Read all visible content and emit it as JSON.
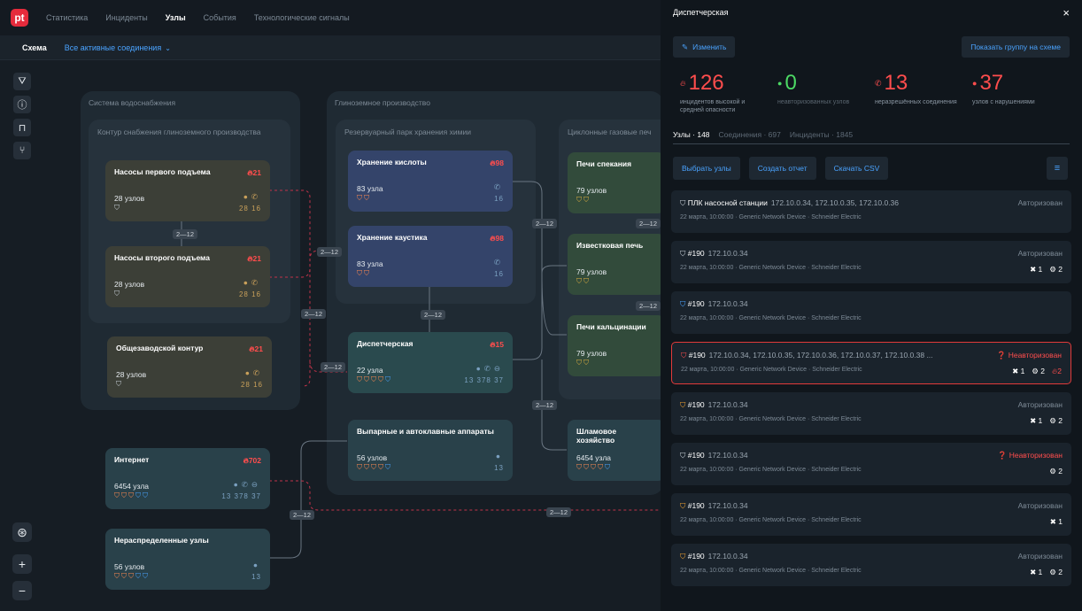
{
  "topnav": {
    "logo": "pt",
    "items": [
      {
        "label": "Статистика",
        "active": false
      },
      {
        "label": "Инциденты",
        "active": false
      },
      {
        "label": "Узлы",
        "active": true
      },
      {
        "label": "События",
        "active": false
      },
      {
        "label": "Технологические сигналы",
        "active": false
      }
    ]
  },
  "subbar": {
    "schema": "Схема",
    "filter": "Все активные соединения"
  },
  "groups": {
    "water": "Система водоснабжения",
    "water_sub": "Контур снабжения глиноземного производства",
    "alumina": "Глиноземное производство",
    "tank": "Резервуарный парк хранения химии",
    "cyclone": "Циклонные газовые печ"
  },
  "nodes": [
    {
      "id": "n1",
      "title": "Насосы первого подъема",
      "fire": "21",
      "count": "28 узлов",
      "rnums": "28  16"
    },
    {
      "id": "n2",
      "title": "Насосы второго подъема",
      "fire": "21",
      "count": "28 узлов",
      "rnums": "28  16"
    },
    {
      "id": "n3",
      "title": "Общезаводской контур",
      "fire": "21",
      "count": "28 узлов",
      "rnums": "28  16"
    },
    {
      "id": "n4",
      "title": "Хранение кислоты",
      "fire": "98",
      "count": "83 узла",
      "rnums": "16"
    },
    {
      "id": "n5",
      "title": "Хранение каустика",
      "fire": "98",
      "count": "83 узла",
      "rnums": "16"
    },
    {
      "id": "n6",
      "title": "Диспетчерская",
      "fire": "15",
      "count": "22 узла",
      "rnums": "13  378  37"
    },
    {
      "id": "n7",
      "title": "Выпарные и автоклавные аппараты",
      "fire": "",
      "count": "56 узлов",
      "rnums": "13"
    },
    {
      "id": "n8",
      "title": "Печи спекания",
      "fire": "",
      "count": "79 узлов",
      "rnums": ""
    },
    {
      "id": "n9",
      "title": "Известковая печь",
      "fire": "",
      "count": "79 узлов",
      "rnums": ""
    },
    {
      "id": "n10",
      "title": "Печи кальцинации",
      "fire": "",
      "count": "79 узлов",
      "rnums": ""
    },
    {
      "id": "n11",
      "title": "Шламовое хозяйство",
      "fire": "",
      "count": "6454 узла",
      "rnums": ""
    },
    {
      "id": "n12",
      "title": "Интернет",
      "fire": "702",
      "count": "6454 узла",
      "rnums": "13  378  37"
    },
    {
      "id": "n13",
      "title": "Нераспределенные узлы",
      "fire": "",
      "count": "56 узлов",
      "rnums": "13"
    }
  ],
  "edge_label": "2—12",
  "panel": {
    "title": "Диспетчерская",
    "close": "×",
    "edit": "Изменить",
    "show_group": "Показать группу на схеме",
    "stats": [
      {
        "value": "126",
        "label": "инцидентов высокой и средней опасности",
        "color": "#ff4d4d",
        "icon": "fire"
      },
      {
        "value": "0",
        "label": "неавторизованных узлов",
        "color": "#4cd964",
        "icon": "dot"
      },
      {
        "value": "13",
        "label": "неразрешённых соединения",
        "color": "#ff4d4d",
        "icon": "phone"
      },
      {
        "value": "37",
        "label": "узлов с нарушениями",
        "color": "#ff4d4d",
        "icon": "dot"
      }
    ],
    "tabs": [
      {
        "label": "Узлы · 148",
        "active": true
      },
      {
        "label": "Соединения · 697",
        "active": false
      },
      {
        "label": "Инциденты · 1845",
        "active": false
      }
    ],
    "actions": {
      "select": "Выбрать узлы",
      "report": "Создать отчет",
      "csv": "Скачать CSV"
    },
    "rows": [
      {
        "name": "ПЛК насосной станции",
        "ip": "172.10.0.34, 172.10.0.35, 172.10.0.36",
        "meta": "22 марта, 10:00:00  ·  Generic Network Device  ·  Schneider Electric",
        "status": "Авторизован",
        "bad": false,
        "c1": "",
        "c2": "",
        "c3": "",
        "icolor": "#c9d1d9"
      },
      {
        "name": "#190",
        "ip": "172.10.0.34",
        "meta": "22 марта, 10:00:00  ·  Generic Network Device  ·  Schneider Electric",
        "status": "Авторизован",
        "bad": false,
        "c1": "1",
        "c2": "2",
        "c3": "",
        "icolor": "#c9d1d9"
      },
      {
        "name": "#190",
        "ip": "172.10.0.34",
        "meta": "22 марта, 10:00:00  ·  Generic Network Device  ·  Schneider Electric",
        "status": "",
        "bad": false,
        "c1": "",
        "c2": "",
        "c3": "",
        "icolor": "#4aa3ff"
      },
      {
        "name": "#190",
        "ip": "172.10.0.34, 172.10.0.35, 172.10.0.36, 172.10.0.37, 172.10.0.38 ...",
        "meta": "22 марта, 10:00:00  ·  Generic Network Device  ·  Schneider Electric",
        "status": "Неавторизован",
        "bad": true,
        "c1": "1",
        "c2": "2",
        "c3": "2",
        "icolor": "#ff4d4d"
      },
      {
        "name": "#190",
        "ip": "172.10.0.34",
        "meta": "22 марта, 10:00:00  ·  Generic Network Device  ·  Schneider Electric",
        "status": "Авторизован",
        "bad": false,
        "c1": "1",
        "c2": "2",
        "c3": "",
        "icolor": "#f0a030"
      },
      {
        "name": "#190",
        "ip": "172.10.0.34",
        "meta": "22 марта, 10:00:00  ·  Generic Network Device  ·  Schneider Electric",
        "status": "Неавторизован",
        "bad": true,
        "c1": "",
        "c2": "2",
        "c3": "",
        "icolor": "#c9d1d9"
      },
      {
        "name": "#190",
        "ip": "172.10.0.34",
        "meta": "22 марта, 10:00:00  ·  Generic Network Device  ·  Schneider Electric",
        "status": "Авторизован",
        "bad": false,
        "c1": "1",
        "c2": "",
        "c3": "",
        "icolor": "#f0a030"
      },
      {
        "name": "#190",
        "ip": "172.10.0.34",
        "meta": "22 марта, 10:00:00  ·  Generic Network Device  ·  Schneider Electric",
        "status": "Авторизован",
        "bad": false,
        "c1": "1",
        "c2": "2",
        "c3": "",
        "icolor": "#f0a030"
      }
    ]
  }
}
